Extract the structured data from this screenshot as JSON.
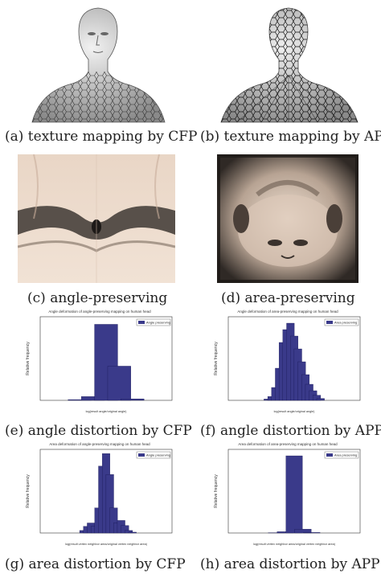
{
  "captions": {
    "a": "(a) texture mapping by CFP",
    "b": "(b) texture mapping by APP",
    "c": "(c) angle-preserving",
    "d": "(d) area-preserving",
    "e": "(e) angle distortion by CFP",
    "f": "(f) angle distortion by APP",
    "g": "(g) area distortion by CFP",
    "h": "(h) area distortion by APP"
  },
  "colors": {
    "bar": "#3a3a8a",
    "bar_edge": "#11114a",
    "texture_skin": "#e8d3c0",
    "texture_dark": "#3a3430",
    "mesh_line": "#222222"
  },
  "chart_data": [
    {
      "id": "e",
      "type": "bar",
      "title": "Angle deformation of angle-preserving mapping on human head",
      "xlabel": "log(result angle/original angle)",
      "ylabel": "Relative frequency",
      "legend": "Angle preserving",
      "legend_position": "top-right",
      "x": [
        -0.02,
        -0.01,
        0.0,
        0.01,
        0.02
      ],
      "values": [
        0.01,
        0.05,
        1.0,
        0.45,
        0.02
      ],
      "ylim": [
        0,
        1.1
      ]
    },
    {
      "id": "f",
      "type": "bar",
      "title": "Angle deformation of area-preserving mapping on human head",
      "xlabel": "log(result angle/original angle)",
      "ylabel": "Relative frequency",
      "legend": "Area preserving",
      "legend_position": "top-right",
      "x": [
        -0.12,
        -0.1,
        -0.08,
        -0.06,
        -0.04,
        -0.02,
        0.0,
        0.02,
        0.04,
        0.06,
        0.08,
        0.1,
        0.12,
        0.14,
        0.16
      ],
      "values": [
        0.002,
        0.006,
        0.02,
        0.05,
        0.09,
        0.11,
        0.12,
        0.1,
        0.08,
        0.06,
        0.04,
        0.025,
        0.015,
        0.008,
        0.003
      ],
      "ylim": [
        0,
        0.13
      ]
    },
    {
      "id": "g",
      "type": "bar",
      "title": "Area deformation of angle-preserving mapping on human head",
      "xlabel": "log(result vertex neighbor area/original vertex neighbor area)",
      "ylabel": "Relative frequency",
      "legend": "Angle preserving",
      "legend_position": "top-right",
      "x": [
        -10,
        -9,
        -8,
        -7,
        -6,
        -5,
        -4,
        -3,
        -2,
        -1,
        0,
        1,
        2,
        3,
        4
      ],
      "values": [
        0.0,
        0.003,
        0.008,
        0.012,
        0.008,
        0.03,
        0.08,
        0.095,
        0.07,
        0.03,
        0.012,
        0.015,
        0.009,
        0.003,
        0.001
      ],
      "ylim": [
        0,
        0.1
      ]
    },
    {
      "id": "h",
      "type": "bar",
      "title": "Area deformation of area-preserving mapping on human head",
      "xlabel": "log(result vertex neighbor area/original vertex neighbor area)",
      "ylabel": "Relative frequency",
      "legend": "Area preserving",
      "legend_position": "top-right",
      "x": [
        -0.03,
        -0.02,
        -0.01,
        0.0,
        0.01,
        0.02,
        0.03
      ],
      "values": [
        0.0,
        0.002,
        0.01,
        0.6,
        0.03,
        0.004,
        0.0
      ],
      "ylim": [
        0,
        0.65
      ]
    }
  ]
}
